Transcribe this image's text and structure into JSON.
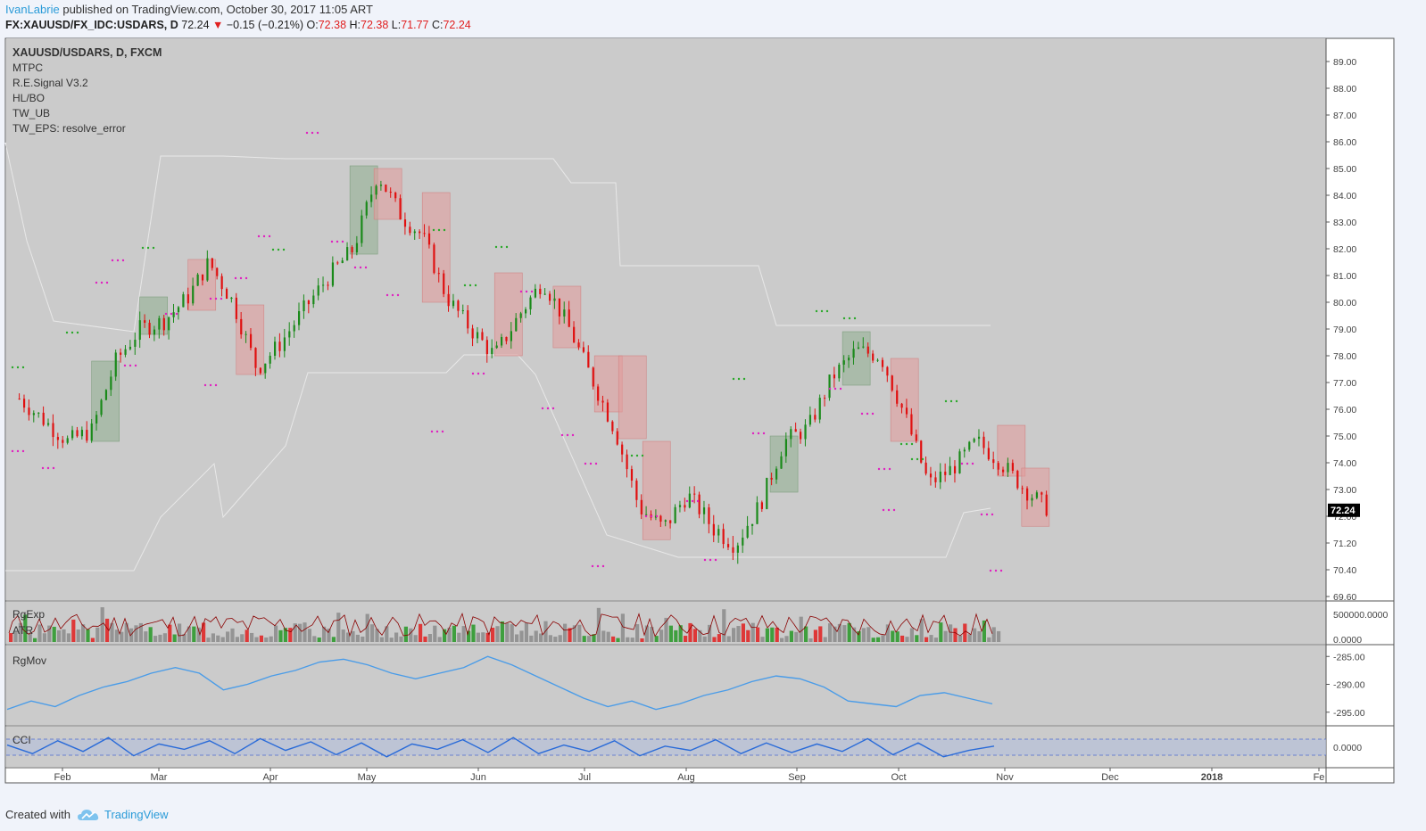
{
  "header": {
    "author": "IvanLabrie",
    "published_text": "published on TradingView.com, October 30, 2017 11:05 ART",
    "symbol": "FX:XAUUSD/FX_IDC:USDARS, D",
    "last": "72.24",
    "change": "−0.15 (−0.21%)",
    "o_label": "O:",
    "o": "72.38",
    "h_label": "H:",
    "h": "72.38",
    "l_label": "L:",
    "l": "71.77",
    "c_label": "C:",
    "c": "72.24"
  },
  "footer": {
    "created_with": "Created with",
    "brand": "TradingView"
  },
  "colors": {
    "pane_bg": "#cbcbcb",
    "up": "#1a8a1a",
    "down": "#e01010",
    "up_box": "#8fae8f",
    "down_box": "#e39a9a",
    "rgmov": "#4a9ce8",
    "cci": "#2a6bd8",
    "marker": "#e020c0",
    "level_line": "#e8e8e8"
  },
  "chart_data": {
    "type": "candlestick",
    "title": "XAUUSD/USDARS, D, FXCM",
    "indicators": [
      "MTPC",
      "R.E.Signal V3.2",
      "HL/BO",
      "TW_UB",
      "TW_EPS: resolve_error"
    ],
    "price_ticks": [
      "89.00",
      "88.00",
      "87.00",
      "86.00",
      "85.00",
      "84.00",
      "83.00",
      "82.00",
      "81.00",
      "80.00",
      "79.00",
      "78.00",
      "77.00",
      "76.00",
      "75.00",
      "74.00",
      "73.00",
      "72.00",
      "71.20",
      "70.40",
      "69.60"
    ],
    "last_price_label": "72.24",
    "x_labels": [
      "Feb",
      "Mar",
      "Apr",
      "May",
      "Jun",
      "Jul",
      "Aug",
      "Sep",
      "Oct",
      "Nov",
      "Dec",
      "2018",
      "Fe"
    ],
    "close_path": [
      [
        "2017-01-04",
        76.4
      ],
      [
        "2017-01-11",
        75.6
      ],
      [
        "2017-01-18",
        74.8
      ],
      [
        "2017-01-25",
        75.2
      ],
      [
        "2017-02-01",
        77.8
      ],
      [
        "2017-02-08",
        79.0
      ],
      [
        "2017-02-15",
        79.3
      ],
      [
        "2017-02-22",
        80.2
      ],
      [
        "2017-02-28",
        81.5
      ],
      [
        "2017-03-07",
        80.0
      ],
      [
        "2017-03-14",
        77.5
      ],
      [
        "2017-03-21",
        78.5
      ],
      [
        "2017-03-28",
        79.8
      ],
      [
        "2017-04-04",
        81.0
      ],
      [
        "2017-04-11",
        82.0
      ],
      [
        "2017-04-18",
        84.8
      ],
      [
        "2017-04-25",
        83.2
      ],
      [
        "2017-05-01",
        82.5
      ],
      [
        "2017-05-08",
        80.2
      ],
      [
        "2017-05-15",
        79.0
      ],
      [
        "2017-05-22",
        78.0
      ],
      [
        "2017-05-29",
        79.5
      ],
      [
        "2017-06-05",
        80.8
      ],
      [
        "2017-06-12",
        79.2
      ],
      [
        "2017-06-19",
        77.2
      ],
      [
        "2017-06-26",
        75.2
      ],
      [
        "2017-07-03",
        72.3
      ],
      [
        "2017-07-10",
        71.6
      ],
      [
        "2017-07-17",
        72.8
      ],
      [
        "2017-07-24",
        71.7
      ],
      [
        "2017-07-31",
        71.2
      ],
      [
        "2017-08-07",
        72.4
      ],
      [
        "2017-08-14",
        74.8
      ],
      [
        "2017-08-21",
        75.3
      ],
      [
        "2017-08-28",
        77.2
      ],
      [
        "2017-09-04",
        78.2
      ],
      [
        "2017-09-11",
        78.0
      ],
      [
        "2017-09-18",
        75.8
      ],
      [
        "2017-09-25",
        73.2
      ],
      [
        "2017-10-02",
        73.8
      ],
      [
        "2017-10-09",
        74.8
      ],
      [
        "2017-10-16",
        74.0
      ],
      [
        "2017-10-23",
        73.0
      ],
      [
        "2017-10-30",
        72.24
      ]
    ],
    "boxes": [
      {
        "dir": "up",
        "from": "2017-01-25",
        "to": "2017-02-01",
        "lo": 74.8,
        "hi": 77.8
      },
      {
        "dir": "up",
        "from": "2017-02-08",
        "to": "2017-02-15",
        "lo": 78.8,
        "hi": 80.2
      },
      {
        "dir": "down",
        "from": "2017-02-22",
        "to": "2017-03-01",
        "lo": 79.7,
        "hi": 81.6
      },
      {
        "dir": "down",
        "from": "2017-03-08",
        "to": "2017-03-15",
        "lo": 77.3,
        "hi": 79.9
      },
      {
        "dir": "up",
        "from": "2017-04-10",
        "to": "2017-04-17",
        "lo": 81.8,
        "hi": 85.1
      },
      {
        "dir": "down",
        "from": "2017-04-17",
        "to": "2017-04-24",
        "lo": 83.1,
        "hi": 85.0
      },
      {
        "dir": "down",
        "from": "2017-05-01",
        "to": "2017-05-08",
        "lo": 80.0,
        "hi": 84.1
      },
      {
        "dir": "down",
        "from": "2017-05-22",
        "to": "2017-05-29",
        "lo": 78.0,
        "hi": 81.1
      },
      {
        "dir": "down",
        "from": "2017-06-08",
        "to": "2017-06-15",
        "lo": 78.3,
        "hi": 80.6
      },
      {
        "dir": "down",
        "from": "2017-06-20",
        "to": "2017-06-27",
        "lo": 75.9,
        "hi": 78.0
      },
      {
        "dir": "down",
        "from": "2017-06-27",
        "to": "2017-07-04",
        "lo": 74.9,
        "hi": 78.0
      },
      {
        "dir": "down",
        "from": "2017-07-04",
        "to": "2017-07-11",
        "lo": 71.3,
        "hi": 74.8
      },
      {
        "dir": "up",
        "from": "2017-08-10",
        "to": "2017-08-17",
        "lo": 72.9,
        "hi": 75.0
      },
      {
        "dir": "up",
        "from": "2017-08-31",
        "to": "2017-09-07",
        "lo": 76.9,
        "hi": 78.9
      },
      {
        "dir": "down",
        "from": "2017-09-14",
        "to": "2017-09-21",
        "lo": 74.8,
        "hi": 77.9
      },
      {
        "dir": "down",
        "from": "2017-10-15",
        "to": "2017-10-22",
        "lo": 73.5,
        "hi": 75.4
      },
      {
        "dir": "down",
        "from": "2017-10-22",
        "to": "2017-10-29",
        "lo": 71.7,
        "hi": 73.8
      }
    ],
    "panes": [
      {
        "name": "RgExp",
        "sub": "ATR",
        "ticks": [
          "500000.0000",
          "0.0000"
        ]
      },
      {
        "name": "RgMov",
        "ticks": [
          "-285.00",
          "-290.00",
          "-295.00"
        ],
        "values": [
          -294.5,
          -293.0,
          -294.0,
          -292.0,
          -290.5,
          -289.5,
          -288.0,
          -287.0,
          -288.0,
          -291.0,
          -290.0,
          -288.5,
          -287.5,
          -286.0,
          -285.5,
          -286.5,
          -288.0,
          -289.0,
          -288.0,
          -287.0,
          -285.0,
          -286.5,
          -288.5,
          -290.5,
          -292.5,
          -294.0,
          -293.0,
          -294.5,
          -293.5,
          -292.0,
          -291.0,
          -289.5,
          -288.5,
          -289.0,
          -290.5,
          -293.0,
          -293.5,
          -294.0,
          -292.0,
          -291.5,
          -292.5,
          -293.5
        ]
      },
      {
        "name": "CCI",
        "ticks": [
          "0.0000"
        ],
        "values": [
          20,
          -60,
          60,
          -40,
          90,
          -80,
          30,
          -20,
          60,
          -60,
          80,
          -30,
          50,
          -70,
          40,
          -90,
          30,
          -20,
          70,
          -50,
          90,
          -60,
          20,
          -40,
          60,
          -80,
          10,
          -30,
          70,
          -60,
          40,
          -50,
          30,
          -40,
          80,
          -70,
          40,
          -90,
          -30,
          10
        ]
      }
    ]
  }
}
